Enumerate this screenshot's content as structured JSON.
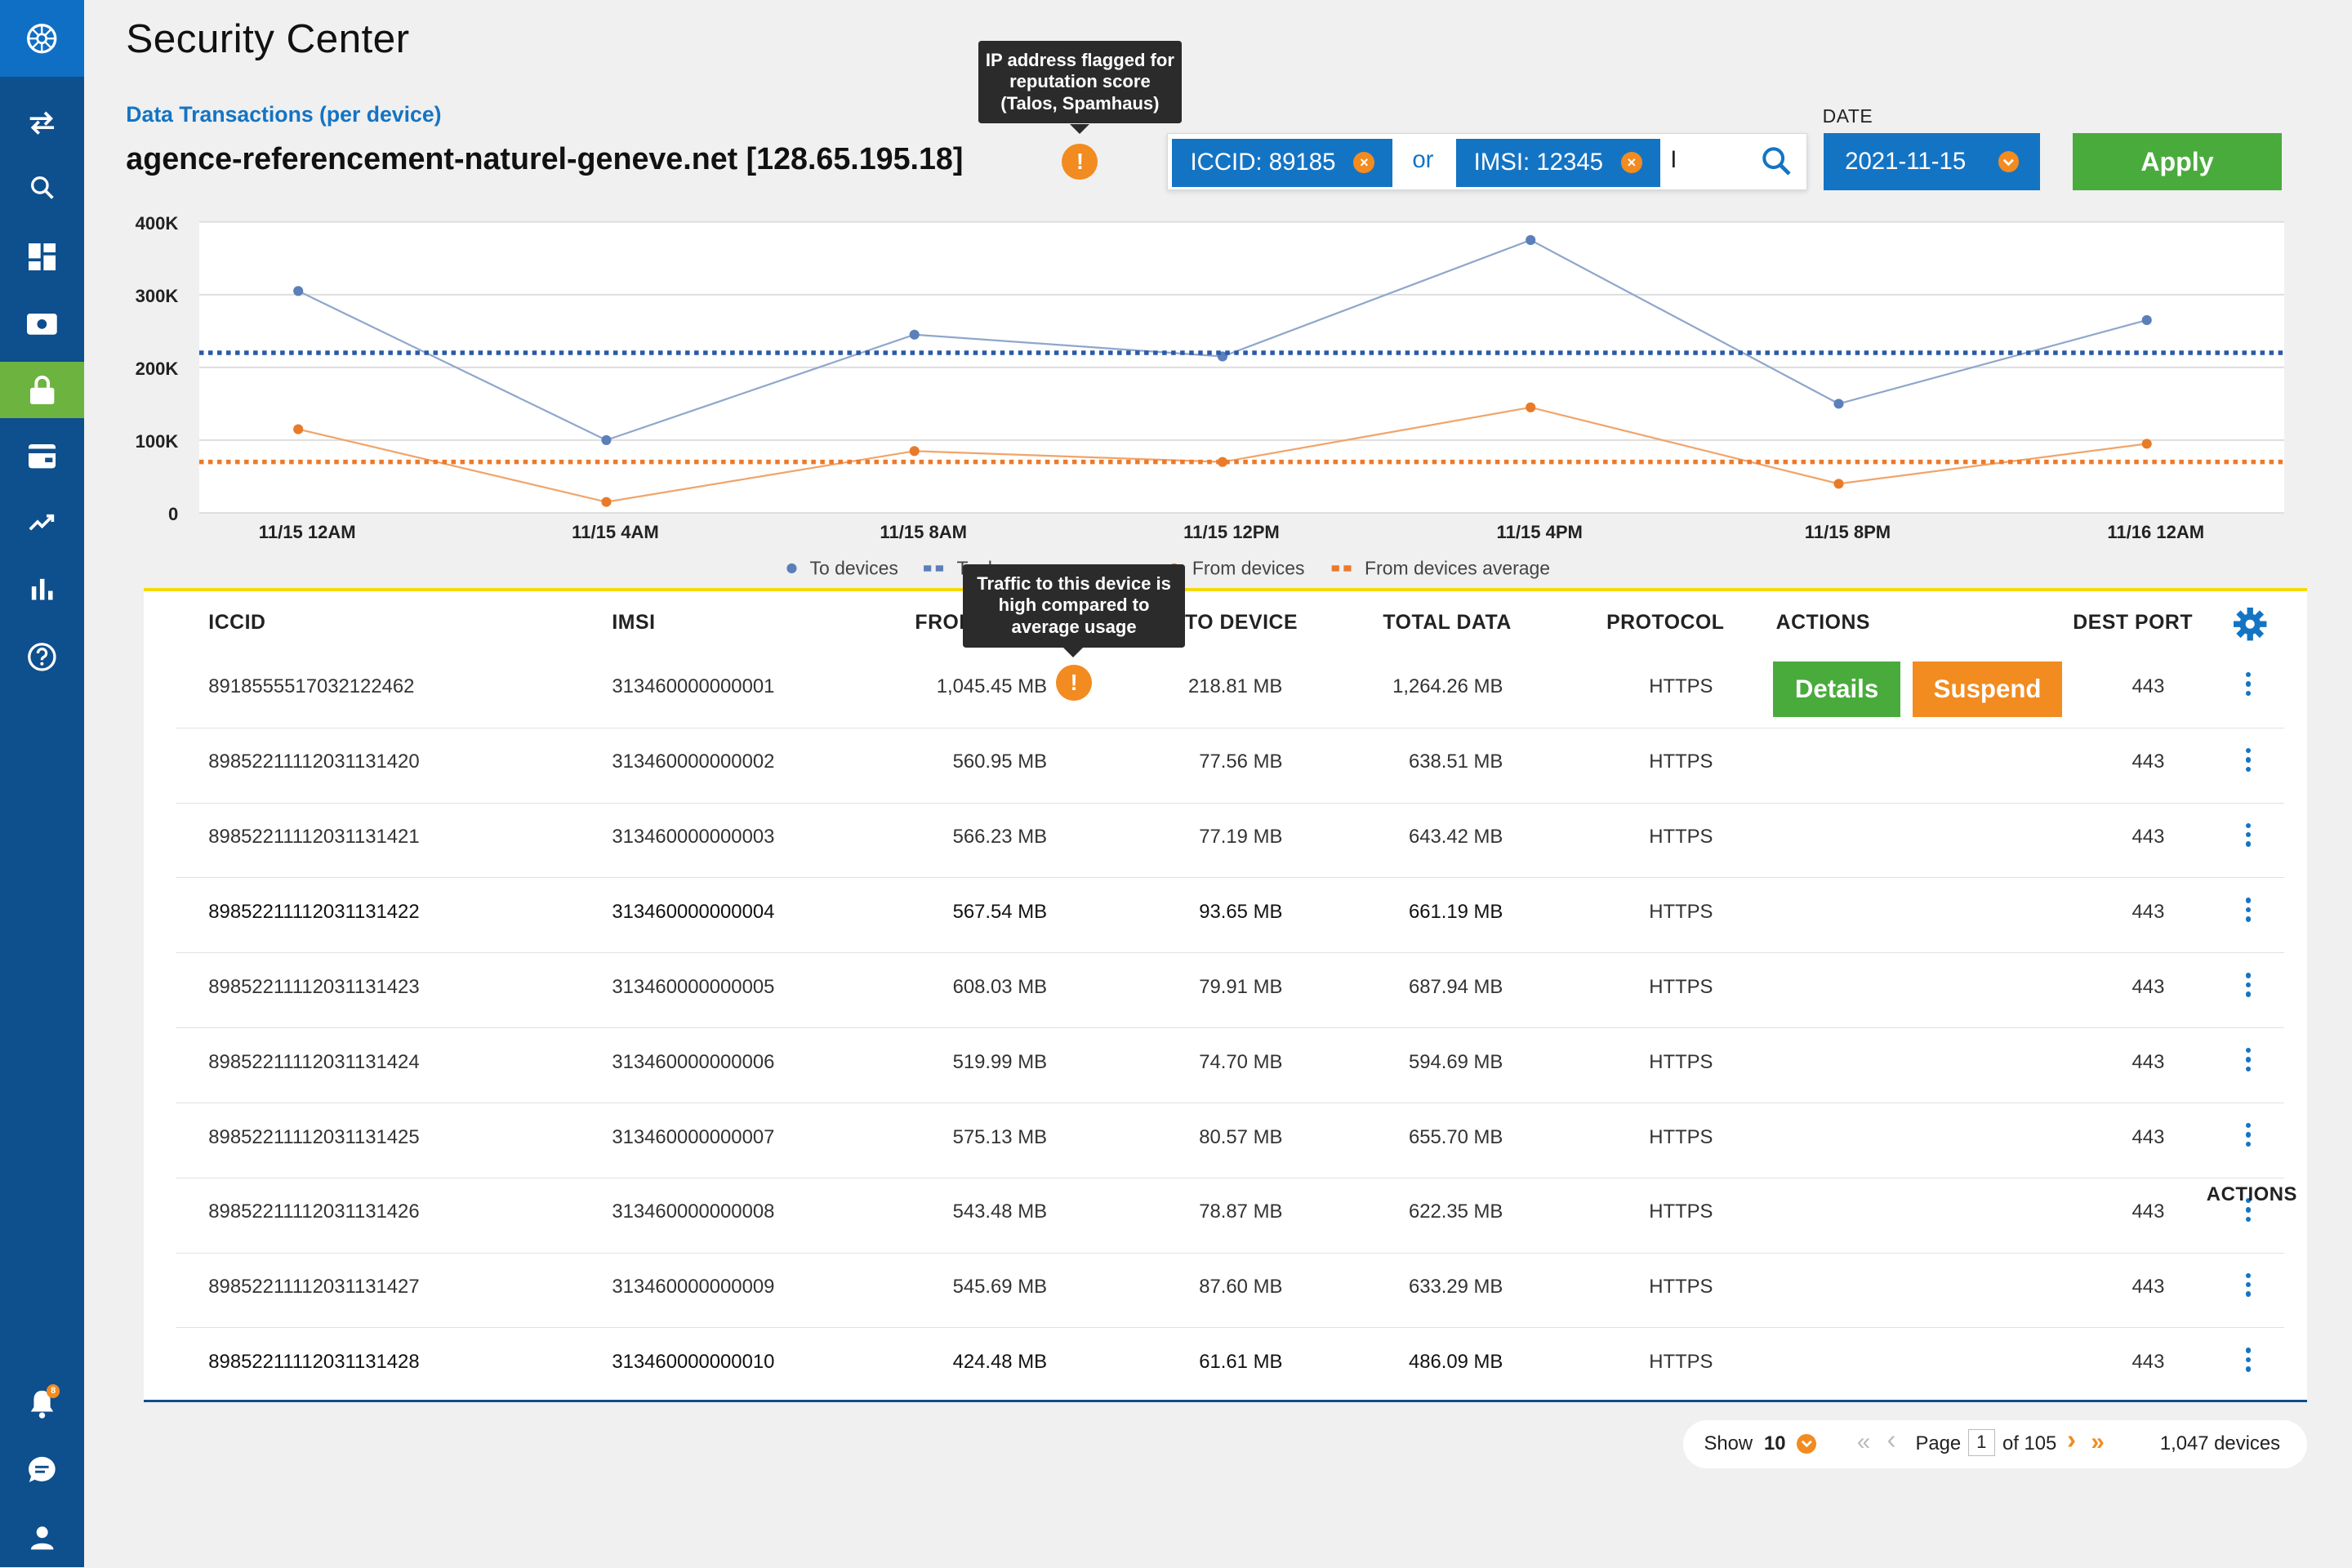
{
  "page": {
    "title": "Security Center",
    "section_label": "Data Transactions (per device)",
    "host": "agence-referencement-naturel-geneve.net [128.65.195.18]",
    "host_warning_glyph": "!",
    "host_tooltip": "IP address flagged for reputation score (Talos, Spamhaus)"
  },
  "sidebar": {
    "items": [
      {
        "icon": "logo-icon"
      },
      {
        "icon": "transfer-icon"
      },
      {
        "icon": "search-icon"
      },
      {
        "icon": "dashboard-icon"
      },
      {
        "icon": "sim-card-icon"
      },
      {
        "icon": "lock-icon",
        "active": true
      },
      {
        "icon": "billing-icon"
      },
      {
        "icon": "trend-icon"
      },
      {
        "icon": "bar-chart-icon"
      },
      {
        "icon": "help-icon"
      },
      {
        "icon": "bell-icon",
        "badge": "8"
      },
      {
        "icon": "chat-icon"
      },
      {
        "icon": "user-icon"
      }
    ],
    "notification_badge": "8",
    "active_color": "#6cb33f"
  },
  "filter": {
    "chip1": "ICCID: 89185",
    "chip2": "IMSI: 12345",
    "or": "or",
    "input_value": "I",
    "chip_close": "×",
    "date_label": "DATE",
    "date_value": "2021-11-15",
    "apply": "Apply"
  },
  "chart_data": {
    "type": "line",
    "x": [
      "11/15 12AM",
      "11/15 4AM",
      "11/15 8AM",
      "11/15 12PM",
      "11/15 4PM",
      "11/15 8PM",
      "11/16 12AM"
    ],
    "y_ticks": [
      "400K",
      "300K",
      "200K",
      "100K",
      "0"
    ],
    "ylim": [
      0,
      400000
    ],
    "series": [
      {
        "name": "To devices",
        "values": [
          305000,
          100000,
          245000,
          215000,
          375000,
          150000,
          265000
        ],
        "color": "#8fa6cc",
        "marker": "#5b7fb9"
      },
      {
        "name": "To devices average",
        "display": "To d",
        "values": [
          220000,
          220000,
          220000,
          220000,
          220000,
          220000,
          220000
        ],
        "color": "#2b5aa6",
        "dotted": true
      },
      {
        "name": "From devices",
        "values": [
          115000,
          15000,
          85000,
          70000,
          145000,
          40000,
          95000
        ],
        "color": "#f0a46a",
        "marker": "#e87b2a"
      },
      {
        "name": "From devices average",
        "values": [
          70000,
          70000,
          70000,
          70000,
          70000,
          70000,
          70000
        ],
        "color": "#ec7a2a",
        "dotted": true
      }
    ],
    "legend": [
      {
        "label": "To devices",
        "color": "#5b7fb9",
        "kind": "dot"
      },
      {
        "label": "To d",
        "color": "#5b7fb9",
        "kind": "dash"
      },
      {
        "label": "From devices",
        "color": "#e87b2a",
        "kind": "dot"
      },
      {
        "label": "From devices average",
        "color": "#ec7a2a",
        "kind": "dash"
      }
    ],
    "legend_position": "bottom-center",
    "grid": true
  },
  "table": {
    "headers": {
      "iccid": "ICCID",
      "imsi": "IMSI",
      "from_device": "FROM",
      "to_device": "TO DEVICE",
      "total": "TOTAL DATA",
      "protocol": "PROTOCOL",
      "actions": "ACTIONS",
      "dest_port": "DEST PORT"
    },
    "traffic_tooltip": "Traffic to this device is high compared to average usage",
    "traffic_warning_glyph": "!",
    "details_label": "Details",
    "suspend_label": "Suspend",
    "floating_actions_label": "ACTIONS",
    "rows": [
      {
        "iccid": "8918555517032122462",
        "imsi": "313460000000001",
        "from": "1,045.45 MB",
        "to": "218.81 MB",
        "total": "1,264.26 MB",
        "protocol": "HTTPS",
        "port": "443"
      },
      {
        "iccid": "89852211112031131420",
        "imsi": "313460000000002",
        "from": "560.95 MB",
        "to": "77.56 MB",
        "total": "638.51 MB",
        "protocol": "HTTPS",
        "port": "443"
      },
      {
        "iccid": "89852211112031131421",
        "imsi": "313460000000003",
        "from": "566.23 MB",
        "to": "77.19 MB",
        "total": "643.42 MB",
        "protocol": "HTTPS",
        "port": "443"
      },
      {
        "iccid": "89852211112031131422",
        "imsi": "313460000000004",
        "from": "567.54 MB",
        "to": "93.65 MB",
        "total": "661.19 MB",
        "protocol": "HTTPS",
        "port": "443"
      },
      {
        "iccid": "89852211112031131423",
        "imsi": "313460000000005",
        "from": "608.03 MB",
        "to": "79.91 MB",
        "total": "687.94 MB",
        "protocol": "HTTPS",
        "port": "443"
      },
      {
        "iccid": "89852211112031131424",
        "imsi": "313460000000006",
        "from": "519.99 MB",
        "to": "74.70 MB",
        "total": "594.69 MB",
        "protocol": "HTTPS",
        "port": "443"
      },
      {
        "iccid": "89852211112031131425",
        "imsi": "313460000000007",
        "from": "575.13 MB",
        "to": "80.57 MB",
        "total": "655.70 MB",
        "protocol": "HTTPS",
        "port": "443"
      },
      {
        "iccid": "89852211112031131426",
        "imsi": "313460000000008",
        "from": "543.48 MB",
        "to": "78.87 MB",
        "total": "622.35 MB",
        "protocol": "HTTPS",
        "port": "443"
      },
      {
        "iccid": "89852211112031131427",
        "imsi": "313460000000009",
        "from": "545.69 MB",
        "to": "87.60 MB",
        "total": "633.29 MB",
        "protocol": "HTTPS",
        "port": "443"
      },
      {
        "iccid": "89852211112031131428",
        "imsi": "313460000000010",
        "from": "424.48 MB",
        "to": "61.61 MB",
        "total": "486.09 MB",
        "protocol": "HTTPS",
        "port": "443"
      }
    ]
  },
  "pager": {
    "show_label": "Show",
    "show_value": "10",
    "page_label": "Page",
    "page_value": "1",
    "page_of": "of 105",
    "total": "1,047 devices",
    "first": "«",
    "prev": "‹",
    "next": "›",
    "last": "»"
  },
  "colors": {
    "primary": "#1474c4",
    "navy": "#0e4f8d",
    "green": "#4aab3d",
    "orange": "#f28b20",
    "accent_line": "#f5d90a"
  }
}
